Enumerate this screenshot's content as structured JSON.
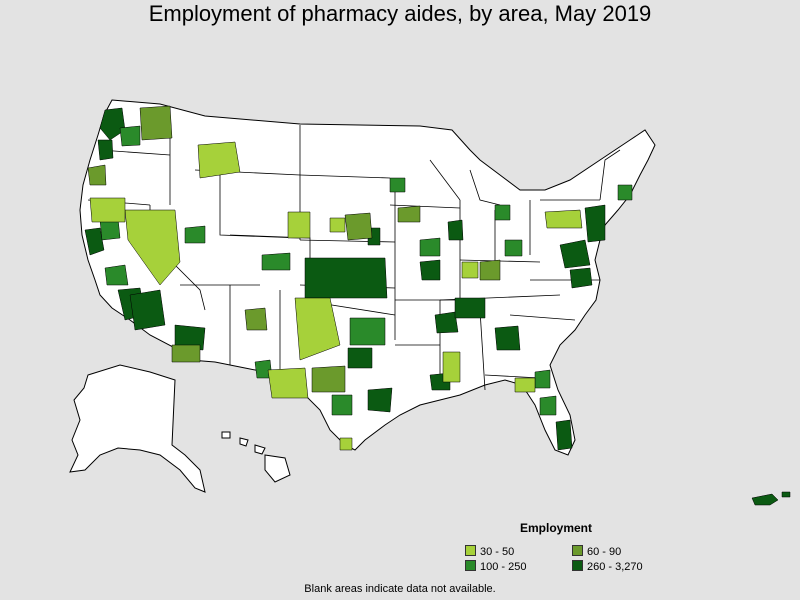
{
  "title": "Employment of pharmacy aides, by area, May 2019",
  "legend": {
    "title": "Employment",
    "items": [
      {
        "label": "30 - 50",
        "color": "#a6d13a"
      },
      {
        "label": "60 - 90",
        "color": "#6b9a2c"
      },
      {
        "label": "100 - 250",
        "color": "#2a8a2a"
      },
      {
        "label": "260 - 3,270",
        "color": "#0b5a12"
      }
    ]
  },
  "footnote": "Blank areas indicate data not available.",
  "colors": {
    "background": "#e3e3e3",
    "land": "#ffffff",
    "border": "#000000",
    "class_30_50": "#a6d13a",
    "class_60_90": "#6b9a2c",
    "class_100_250": "#2a8a2a",
    "class_260_3270": "#0b5a12"
  }
}
